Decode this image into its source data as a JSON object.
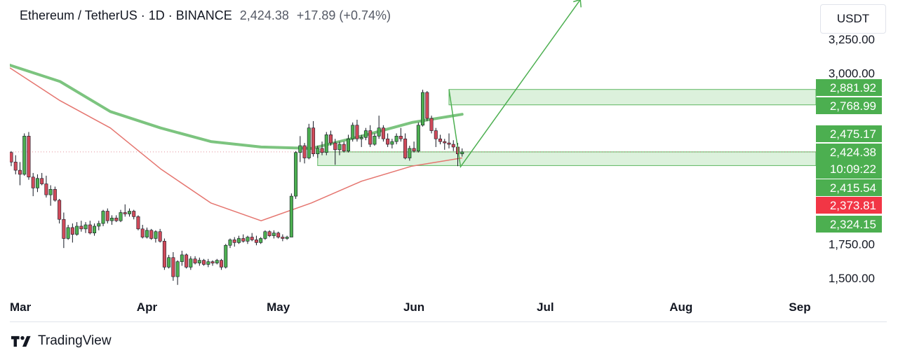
{
  "header": {
    "symbol": "Ethereum / TetherUS · 1D · BINANCE",
    "price": "2,424.38",
    "change": "+17.89 (+0.74%)"
  },
  "currency_button": {
    "label": "USDT"
  },
  "footer": {
    "brand": "TradingView"
  },
  "colors": {
    "up": "#4caf50",
    "down": "#d04a5a",
    "ma_green": "#7cc47f",
    "ma_red": "#e5756f",
    "zone": "#d9f0d9",
    "label_green": "#4caf50",
    "label_red": "#f23645"
  },
  "chart_data": {
    "type": "candlestick",
    "x_axis_labels": [
      "Mar",
      "Apr",
      "May",
      "Jun",
      "Jul",
      "Aug",
      "Sep"
    ],
    "y_axis_ticks": [
      {
        "value": 3250,
        "label": "3,250.00"
      },
      {
        "value": 3000,
        "label": "3,000.00"
      },
      {
        "value": 1750,
        "label": "1,750.00"
      },
      {
        "value": 1500,
        "label": "1,500.00"
      }
    ],
    "price_labels": [
      {
        "value": 2881.92,
        "label": "2,881.92",
        "color": "green"
      },
      {
        "value": 2768.99,
        "label": "2,768.99",
        "color": "green"
      },
      {
        "value": 2475.17,
        "label": "2,475.17",
        "color": "green"
      },
      {
        "value": 2424.38,
        "label": "2,424.38",
        "sub": "10:09:22",
        "color": "green"
      },
      {
        "value": 2415.54,
        "label": "2,415.54",
        "color": "green"
      },
      {
        "value": 2373.81,
        "label": "2,373.81",
        "color": "red"
      },
      {
        "value": 2324.15,
        "label": "2,324.15",
        "color": "green"
      }
    ],
    "resistance_zone": {
      "from_day": 100,
      "high": 2881.92,
      "low": 2768.99
    },
    "support_zone": {
      "from_day": 70,
      "high": 2424.38,
      "low": 2324.15
    },
    "last_price": 2424.38,
    "candles": [
      [
        2420,
        2430,
        2320,
        2350
      ],
      [
        2350,
        2400,
        2260,
        2290
      ],
      [
        2290,
        2350,
        2180,
        2260
      ],
      [
        2260,
        2560,
        2250,
        2540
      ],
      [
        2540,
        2570,
        2220,
        2240
      ],
      [
        2240,
        2270,
        2100,
        2160
      ],
      [
        2160,
        2260,
        2130,
        2230
      ],
      [
        2230,
        2270,
        2180,
        2190
      ],
      [
        2190,
        2250,
        2090,
        2110
      ],
      [
        2110,
        2180,
        2030,
        2150
      ],
      [
        2150,
        2170,
        2060,
        2070
      ],
      [
        2070,
        2080,
        1900,
        1930
      ],
      [
        1930,
        1980,
        1720,
        1790
      ],
      [
        1790,
        1890,
        1780,
        1870
      ],
      [
        1870,
        1900,
        1760,
        1820
      ],
      [
        1820,
        1910,
        1810,
        1880
      ],
      [
        1880,
        1920,
        1840,
        1860
      ],
      [
        1860,
        1910,
        1830,
        1890
      ],
      [
        1890,
        1920,
        1820,
        1830
      ],
      [
        1830,
        1900,
        1810,
        1880
      ],
      [
        1880,
        1920,
        1850,
        1900
      ],
      [
        1900,
        2000,
        1880,
        1990
      ],
      [
        1990,
        2010,
        1900,
        1920
      ],
      [
        1920,
        1960,
        1890,
        1940
      ],
      [
        1940,
        1960,
        1910,
        1920
      ],
      [
        1920,
        2000,
        1910,
        1980
      ],
      [
        1980,
        2040,
        1950,
        1970
      ],
      [
        1970,
        2010,
        1950,
        1990
      ],
      [
        1990,
        2000,
        1930,
        1950
      ],
      [
        1950,
        1960,
        1850,
        1860
      ],
      [
        1860,
        1890,
        1790,
        1800
      ],
      [
        1800,
        1870,
        1790,
        1850
      ],
      [
        1850,
        1860,
        1780,
        1790
      ],
      [
        1790,
        1850,
        1760,
        1840
      ],
      [
        1840,
        1860,
        1760,
        1770
      ],
      [
        1770,
        1790,
        1560,
        1580
      ],
      [
        1580,
        1670,
        1570,
        1650
      ],
      [
        1650,
        1690,
        1480,
        1510
      ],
      [
        1510,
        1630,
        1450,
        1620
      ],
      [
        1620,
        1700,
        1590,
        1670
      ],
      [
        1670,
        1680,
        1570,
        1580
      ],
      [
        1580,
        1660,
        1560,
        1640
      ],
      [
        1640,
        1660,
        1600,
        1610
      ],
      [
        1610,
        1650,
        1590,
        1630
      ],
      [
        1630,
        1640,
        1590,
        1600
      ],
      [
        1600,
        1640,
        1580,
        1620
      ],
      [
        1620,
        1630,
        1590,
        1610
      ],
      [
        1610,
        1640,
        1600,
        1630
      ],
      [
        1630,
        1640,
        1560,
        1580
      ],
      [
        1580,
        1750,
        1570,
        1740
      ],
      [
        1740,
        1790,
        1720,
        1780
      ],
      [
        1780,
        1800,
        1730,
        1760
      ],
      [
        1760,
        1810,
        1750,
        1790
      ],
      [
        1790,
        1820,
        1760,
        1770
      ],
      [
        1770,
        1810,
        1750,
        1800
      ],
      [
        1800,
        1830,
        1770,
        1780
      ],
      [
        1780,
        1810,
        1740,
        1760
      ],
      [
        1760,
        1800,
        1750,
        1790
      ],
      [
        1790,
        1850,
        1780,
        1840
      ],
      [
        1840,
        1850,
        1800,
        1810
      ],
      [
        1810,
        1850,
        1790,
        1830
      ],
      [
        1830,
        1840,
        1790,
        1800
      ],
      [
        1800,
        1820,
        1770,
        1790
      ],
      [
        1790,
        1810,
        1780,
        1800
      ],
      [
        1800,
        2120,
        1800,
        2100
      ],
      [
        2100,
        2430,
        2080,
        2420
      ],
      [
        2420,
        2540,
        2350,
        2470
      ],
      [
        2470,
        2490,
        2340,
        2380
      ],
      [
        2380,
        2630,
        2370,
        2600
      ],
      [
        2600,
        2650,
        2390,
        2410
      ],
      [
        2410,
        2470,
        2380,
        2450
      ],
      [
        2450,
        2500,
        2400,
        2420
      ],
      [
        2420,
        2570,
        2400,
        2550
      ],
      [
        2550,
        2580,
        2470,
        2490
      ],
      [
        2490,
        2520,
        2330,
        2440
      ],
      [
        2440,
        2500,
        2400,
        2480
      ],
      [
        2480,
        2500,
        2420,
        2430
      ],
      [
        2430,
        2550,
        2420,
        2520
      ],
      [
        2520,
        2640,
        2500,
        2620
      ],
      [
        2620,
        2660,
        2500,
        2520
      ],
      [
        2520,
        2550,
        2460,
        2530
      ],
      [
        2530,
        2600,
        2510,
        2580
      ],
      [
        2580,
        2620,
        2460,
        2480
      ],
      [
        2480,
        2560,
        2470,
        2540
      ],
      [
        2540,
        2690,
        2520,
        2600
      ],
      [
        2600,
        2620,
        2500,
        2520
      ],
      [
        2520,
        2560,
        2460,
        2480
      ],
      [
        2480,
        2520,
        2450,
        2500
      ],
      [
        2500,
        2560,
        2480,
        2540
      ],
      [
        2540,
        2600,
        2500,
        2520
      ],
      [
        2520,
        2560,
        2370,
        2380
      ],
      [
        2380,
        2470,
        2360,
        2450
      ],
      [
        2450,
        2500,
        2420,
        2430
      ],
      [
        2430,
        2640,
        2420,
        2620
      ],
      [
        2620,
        2880,
        2610,
        2860
      ],
      [
        2860,
        2870,
        2650,
        2670
      ],
      [
        2670,
        2690,
        2560,
        2580
      ],
      [
        2580,
        2600,
        2460,
        2520
      ],
      [
        2520,
        2550,
        2480,
        2500
      ],
      [
        2500,
        2520,
        2440,
        2490
      ],
      [
        2490,
        2560,
        2450,
        2480
      ],
      [
        2480,
        2510,
        2430,
        2460
      ],
      [
        2460,
        2490,
        2320,
        2410
      ],
      [
        2410,
        2450,
        2390,
        2424
      ]
    ],
    "ma_long": [
      3060,
      2940,
      2720,
      2600,
      2500,
      2460,
      2450,
      2540,
      2640,
      2700
    ],
    "ma_short": [
      3040,
      2800,
      2600,
      2300,
      2050,
      1920,
      2050,
      2210,
      2320,
      2380
    ],
    "projection": {
      "from": [
        102,
        2300
      ],
      "to": [
        130,
        3540
      ]
    }
  }
}
